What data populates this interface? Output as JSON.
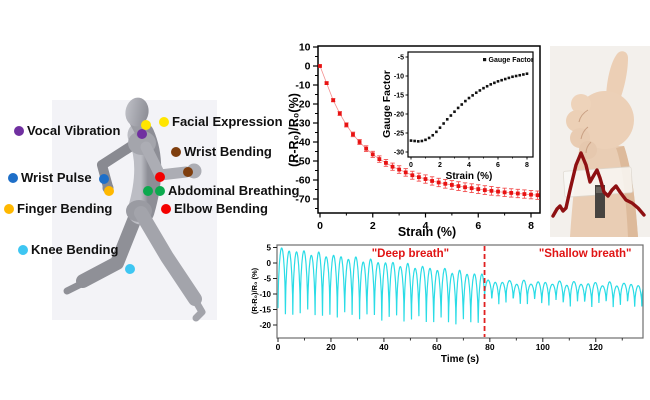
{
  "body_map": {
    "labels": [
      {
        "label": "Vocal Vibration",
        "color": "#7030A0"
      },
      {
        "label": "Facial Expression",
        "color": "#FFE500"
      },
      {
        "label": "Wrist Bending",
        "color": "#7F3E0E"
      },
      {
        "label": "Wrist Pulse",
        "color": "#1E6FC8"
      },
      {
        "label": "Abdominal Breathing",
        "color": "#0CA94E"
      },
      {
        "label": "Finger Bending",
        "color": "#FFB800"
      },
      {
        "label": "Elbow Bending",
        "color": "#F40000"
      },
      {
        "label": "Knee Bending",
        "color": "#3EC6F2"
      }
    ]
  },
  "chart_data": [
    {
      "type": "scatter",
      "name": "strain-response",
      "xlabel": "Strain (%)",
      "ylabel": "(R-R₀)/R₀(%)",
      "xlim": [
        -0.1,
        8.4
      ],
      "ylim": [
        -77,
        10.5
      ],
      "xticks": [
        0,
        2,
        4,
        6,
        8
      ],
      "yticks": [
        10,
        0,
        -10,
        -20,
        -30,
        -40,
        -50,
        -60,
        -70
      ],
      "marker_color": "#E81212",
      "errorbar_color": "#F25050",
      "line_color": "#F49090",
      "x": [
        0,
        0.25,
        0.5,
        0.75,
        1,
        1.25,
        1.5,
        1.75,
        2,
        2.25,
        2.5,
        2.75,
        3,
        3.25,
        3.5,
        3.75,
        4,
        4.25,
        4.5,
        4.75,
        5,
        5.25,
        5.5,
        5.75,
        6,
        6.25,
        6.5,
        6.75,
        7,
        7.25,
        7.5,
        7.75,
        8,
        8.25
      ],
      "y": [
        0,
        -9,
        -18,
        -25,
        -31,
        -36,
        -40,
        -43.5,
        -46.5,
        -49,
        -51,
        -53,
        -54.5,
        -56,
        -57.5,
        -58.5,
        -59.5,
        -60.5,
        -61.3,
        -62,
        -62.6,
        -63.2,
        -63.8,
        -64.3,
        -64.8,
        -65.3,
        -65.7,
        -66.1,
        -66.5,
        -66.8,
        -67.1,
        -67.4,
        -67.7,
        -68
      ],
      "yerr": [
        0,
        0.6,
        0.8,
        1,
        1.1,
        1.2,
        1.3,
        1.5,
        1.6,
        1.7,
        1.8,
        1.9,
        2,
        2,
        2.1,
        2.1,
        2.2,
        2.2,
        2.2,
        2.3,
        2.3,
        2.3,
        2.3,
        2.3,
        2.3,
        2.3,
        2.3,
        2.2,
        2.2,
        2.2,
        2.2,
        2.2,
        2.2,
        2.2
      ]
    },
    {
      "type": "scatter",
      "name": "gauge-factor-inset",
      "legend": [
        "Gauge Factor"
      ],
      "xlabel": "Strain (%)",
      "ylabel": "Gauge Factor",
      "xlim": [
        -0.2,
        8.3
      ],
      "ylim": [
        -30,
        -5
      ],
      "xticks": [
        0,
        2,
        4,
        6,
        8
      ],
      "yticks": [
        -5,
        -10,
        -15,
        -20,
        -25,
        -30
      ],
      "marker_color": "#111111",
      "x": [
        0,
        0.25,
        0.5,
        0.75,
        1,
        1.25,
        1.5,
        1.75,
        2,
        2.25,
        2.5,
        2.75,
        3,
        3.25,
        3.5,
        3.75,
        4,
        4.25,
        4.5,
        4.75,
        5,
        5.25,
        5.5,
        5.75,
        6,
        6.25,
        6.5,
        6.75,
        7,
        7.25,
        7.5,
        7.75,
        8
      ],
      "y": [
        -27,
        -27.1,
        -27.2,
        -27.1,
        -26.8,
        -26.3,
        -25.6,
        -24.7,
        -23.6,
        -22.5,
        -21.4,
        -20.4,
        -19.4,
        -18.4,
        -17.5,
        -16.6,
        -15.8,
        -15.1,
        -14.4,
        -13.8,
        -13.2,
        -12.7,
        -12.2,
        -11.8,
        -11.4,
        -11.1,
        -10.8,
        -10.5,
        -10.2,
        -10,
        -9.8,
        -9.6,
        -9.4
      ]
    },
    {
      "type": "line",
      "name": "breathing-signal",
      "xlabel": "Time (s)",
      "ylabel": "(R-R₀)/R₀ (%)",
      "xlim": [
        0,
        138
      ],
      "ylim": [
        -24.2,
        5.8
      ],
      "xticks": [
        0,
        20,
        40,
        60,
        80,
        100,
        120
      ],
      "yticks": [
        5,
        0,
        -5,
        -10,
        -15,
        -20
      ],
      "line_color": "#2ADCE6",
      "divider": {
        "t": 78,
        "color": "#E02020",
        "style": "dashed"
      },
      "annotations": [
        {
          "text": "\"Deep breath\"",
          "t_center": 50,
          "color": "#E01414"
        },
        {
          "text": "\"Shallow breath\"",
          "t_center": 116,
          "color": "#E01414"
        }
      ],
      "segments": [
        {
          "phase": "deep breath",
          "t_range": [
            0,
            78
          ],
          "period_s": 2.8,
          "peak_env": [
            4.5,
            -4
          ],
          "trough_env": [
            -15.5,
            -19.5
          ]
        },
        {
          "phase": "shallow breath",
          "t_range": [
            78,
            138
          ],
          "period_s": 2.7,
          "peak_env": [
            -6,
            -7
          ],
          "trough_env": [
            -12.3,
            -13.5
          ]
        }
      ]
    }
  ]
}
